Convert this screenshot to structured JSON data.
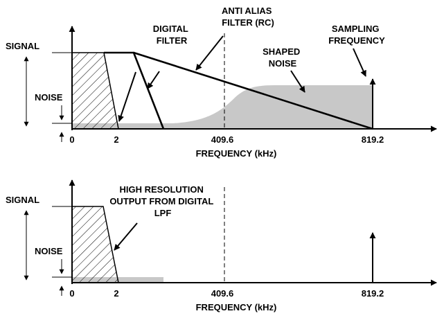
{
  "colors": {
    "noise_fill": "#c8c8c8",
    "line": "#000000",
    "background": "#ffffff"
  },
  "top_panel": {
    "y_labels": {
      "signal": "SIGNAL",
      "noise": "NOISE"
    },
    "callouts": {
      "digital_filter": [
        "DIGITAL",
        "FILTER"
      ],
      "anti_alias": [
        "ANTI ALIAS",
        "FILTER (RC)"
      ],
      "sampling_frequency": [
        "SAMPLING",
        "FREQUENCY"
      ],
      "shaped_noise": [
        "SHAPED",
        "NOISE"
      ]
    },
    "ticks": [
      "0",
      "2",
      "409.6",
      "819.2"
    ],
    "x_label": "FREQUENCY (kHz)"
  },
  "bottom_panel": {
    "y_labels": {
      "signal": "SIGNAL",
      "noise": "NOISE"
    },
    "callouts": {
      "output": [
        "HIGH RESOLUTION",
        "OUTPUT FROM DIGITAL",
        "LPF"
      ]
    },
    "ticks": [
      "0",
      "2",
      "409.6",
      "819.2"
    ],
    "x_label": "FREQUENCY (kHz)"
  }
}
